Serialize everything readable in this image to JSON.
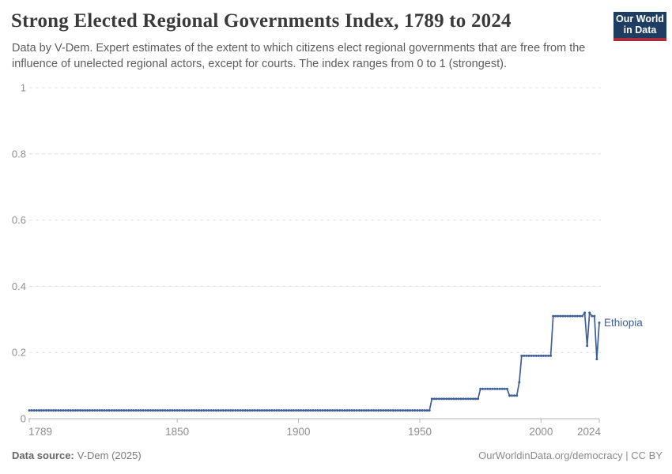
{
  "header": {
    "title": "Strong Elected Regional Governments Index, 1789 to 2024",
    "subtitle": "Data by V-Dem. Expert estimates of the extent to which citizens elect regional governments that are free from the influence of unelected regional actors, except for courts. The index ranges from 0 to 1 (strongest).",
    "logo": {
      "line1": "Our World",
      "line2": "in Data"
    }
  },
  "chart_data": {
    "type": "line",
    "title": "Strong Elected Regional Governments Index, 1789 to 2024",
    "entity": "Ethiopia",
    "xlabel": "",
    "ylabel": "",
    "xlim": [
      1789,
      2024
    ],
    "ylim": [
      0,
      1
    ],
    "grid": "horizontal-dashed",
    "legend_position": "line-end-label",
    "x_ticks": [
      {
        "year": 1789,
        "label": "1789",
        "align": "start"
      },
      {
        "year": 1850,
        "label": "1850",
        "align": "middle"
      },
      {
        "year": 1900,
        "label": "1900",
        "align": "middle"
      },
      {
        "year": 1950,
        "label": "1950",
        "align": "middle"
      },
      {
        "year": 2000,
        "label": "2000",
        "align": "middle"
      },
      {
        "year": 2024,
        "label": "2024",
        "align": "end"
      }
    ],
    "y_ticks": [
      {
        "value": 0,
        "label": "0"
      },
      {
        "value": 0.2,
        "label": "0.2"
      },
      {
        "value": 0.4,
        "label": "0.4"
      },
      {
        "value": 0.6,
        "label": "0.6"
      },
      {
        "value": 0.8,
        "label": "0.8"
      },
      {
        "value": 1,
        "label": "1"
      }
    ],
    "series": [
      {
        "name": "Ethiopia",
        "color": "#3d5e99",
        "segments": [
          {
            "from": 1789,
            "to": 1954,
            "value": 0.025
          },
          {
            "from": 1955,
            "to": 1974,
            "value": 0.06
          },
          {
            "from": 1975,
            "to": 1986,
            "value": 0.09
          },
          {
            "from": 1987,
            "to": 1990,
            "value": 0.07
          },
          {
            "from": 1991,
            "to": 1991,
            "value": 0.11
          },
          {
            "from": 1992,
            "to": 2004,
            "value": 0.19
          },
          {
            "from": 2005,
            "to": 2017,
            "value": 0.31
          },
          {
            "from": 2018,
            "to": 2018,
            "value": 0.32
          },
          {
            "from": 2019,
            "to": 2019,
            "value": 0.22
          },
          {
            "from": 2020,
            "to": 2020,
            "value": 0.32
          },
          {
            "from": 2021,
            "to": 2022,
            "value": 0.31
          },
          {
            "from": 2023,
            "to": 2023,
            "value": 0.18
          },
          {
            "from": 2024,
            "to": 2024,
            "value": 0.29
          }
        ]
      }
    ]
  },
  "footer": {
    "source_label": "Data source:",
    "source_value": "V-Dem (2025)",
    "right_text": "OurWorldinData.org/democracy | CC BY"
  },
  "colors": {
    "accent_navy": "#1d3d63",
    "accent_red": "#a82c3a",
    "series_blue": "#3d5e99",
    "grid_gray": "#dedede",
    "axis_gray": "#b3b3b3",
    "tick_label_gray": "#8e8e8e"
  }
}
